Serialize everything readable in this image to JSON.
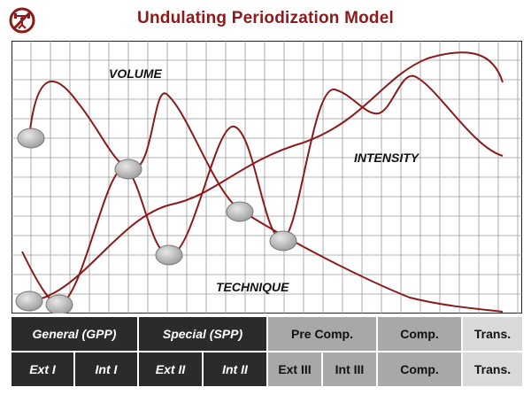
{
  "title": "Undulating Periodization Model",
  "logo_icon": "weightlifter-icon",
  "colors": {
    "accent": "#8b1a1a",
    "curve": "#8b1a1a",
    "dark_band": "#2b2b2b",
    "mid_band": "#a8a8a8",
    "light_band": "#d9d9d9"
  },
  "curves": [
    {
      "label": "VOLUME"
    },
    {
      "label": "INTENSITY"
    },
    {
      "label": "TECHNIQUE"
    }
  ],
  "phases": [
    {
      "label": "General (GPP)"
    },
    {
      "label": "Special (SPP)"
    },
    {
      "label": "Pre Comp."
    },
    {
      "label": "Comp."
    },
    {
      "label": "Trans."
    }
  ],
  "subphases": [
    {
      "label": "Ext I"
    },
    {
      "label": "Int I"
    },
    {
      "label": "Ext II"
    },
    {
      "label": "Int II"
    },
    {
      "label": "Ext III"
    },
    {
      "label": "Int III"
    },
    {
      "label": "Comp."
    },
    {
      "label": "Trans."
    }
  ]
}
